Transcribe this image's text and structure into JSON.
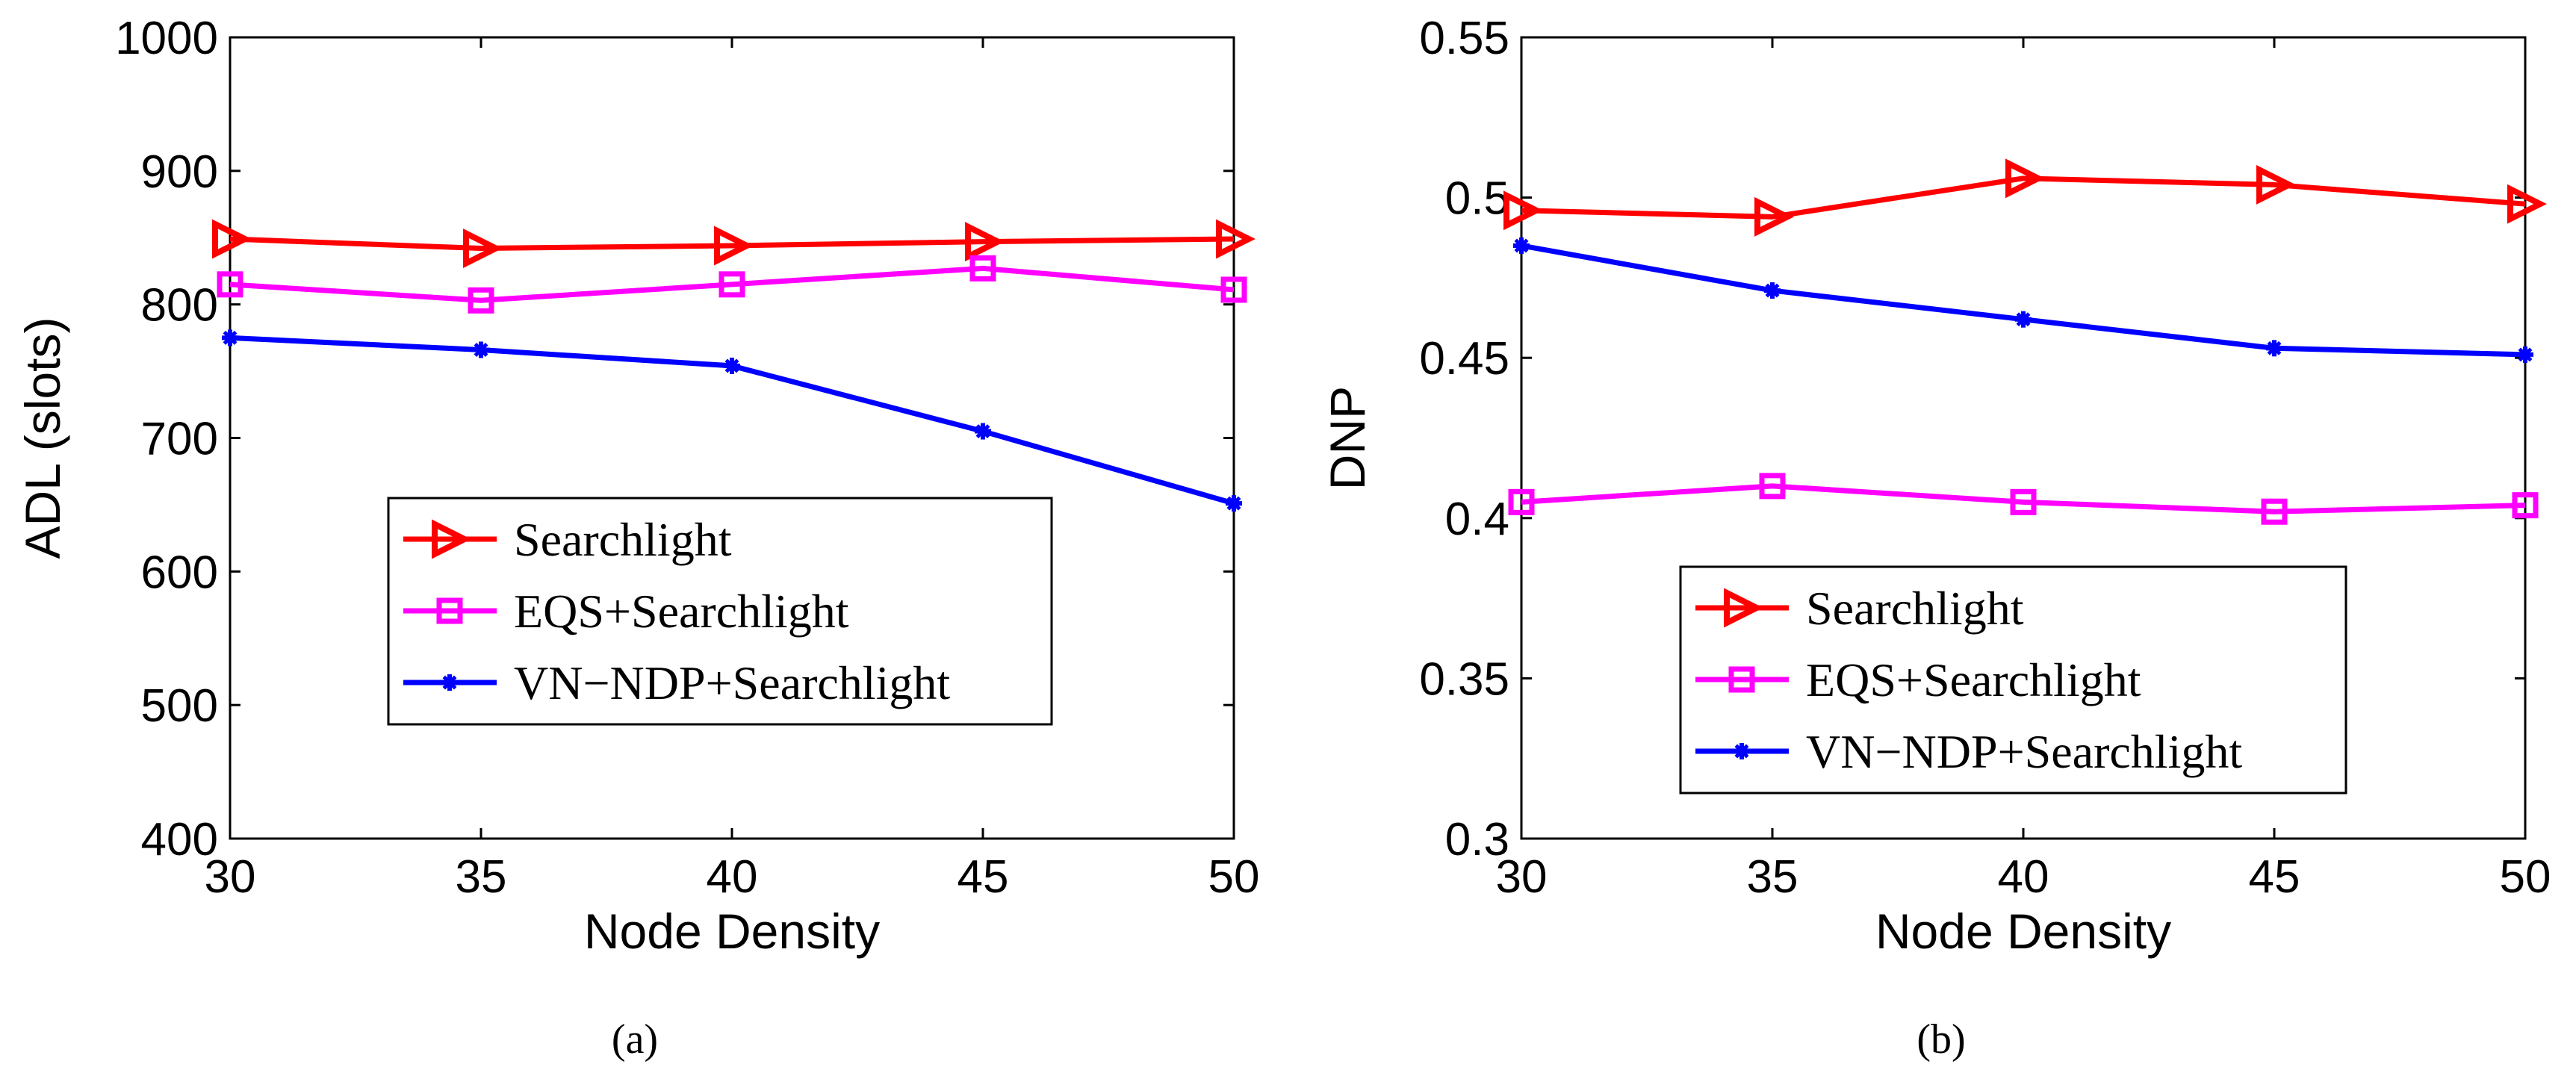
{
  "chart_data": [
    {
      "type": "line",
      "panel_caption": "(a)",
      "title": "",
      "xlabel": "Node Density",
      "ylabel": "ADL (slots)",
      "x": [
        30,
        35,
        40,
        45,
        50
      ],
      "xlim": [
        30,
        50
      ],
      "ylim": [
        400,
        1000
      ],
      "xticks": [
        "30",
        "35",
        "40",
        "45",
        "50"
      ],
      "yticks": [
        "400",
        "500",
        "600",
        "700",
        "800",
        "900",
        "1000"
      ],
      "legend_position": "lower-right",
      "series": [
        {
          "name": "Searchlight",
          "marker": "triangle-right",
          "color": "#ff0000",
          "values": [
            849,
            842,
            844,
            847,
            849
          ]
        },
        {
          "name": "EQS+Searchlight",
          "marker": "square",
          "color": "#ff00ff",
          "values": [
            815,
            803,
            815,
            827,
            811
          ]
        },
        {
          "name": "VN−NDP+Searchlight",
          "marker": "star",
          "color": "#0000ff",
          "values": [
            775,
            766,
            754,
            705,
            651
          ]
        }
      ]
    },
    {
      "type": "line",
      "panel_caption": "(b)",
      "title": "",
      "xlabel": "Node Density",
      "ylabel": "DNP",
      "x": [
        30,
        35,
        40,
        45,
        50
      ],
      "xlim": [
        30,
        50
      ],
      "ylim": [
        0.3,
        0.55
      ],
      "xticks": [
        "30",
        "35",
        "40",
        "45",
        "50"
      ],
      "yticks": [
        "0.3",
        "0.35",
        "0.4",
        "0.45",
        "0.5",
        "0.55"
      ],
      "legend_position": "lower-right",
      "series": [
        {
          "name": "Searchlight",
          "marker": "triangle-right",
          "color": "#ff0000",
          "values": [
            0.496,
            0.494,
            0.506,
            0.504,
            0.498
          ]
        },
        {
          "name": "EQS+Searchlight",
          "marker": "square",
          "color": "#ff00ff",
          "values": [
            0.405,
            0.41,
            0.405,
            0.402,
            0.404
          ]
        },
        {
          "name": "VN−NDP+Searchlight",
          "marker": "star",
          "color": "#0000ff",
          "values": [
            0.485,
            0.471,
            0.462,
            0.453,
            0.451
          ]
        }
      ]
    }
  ]
}
